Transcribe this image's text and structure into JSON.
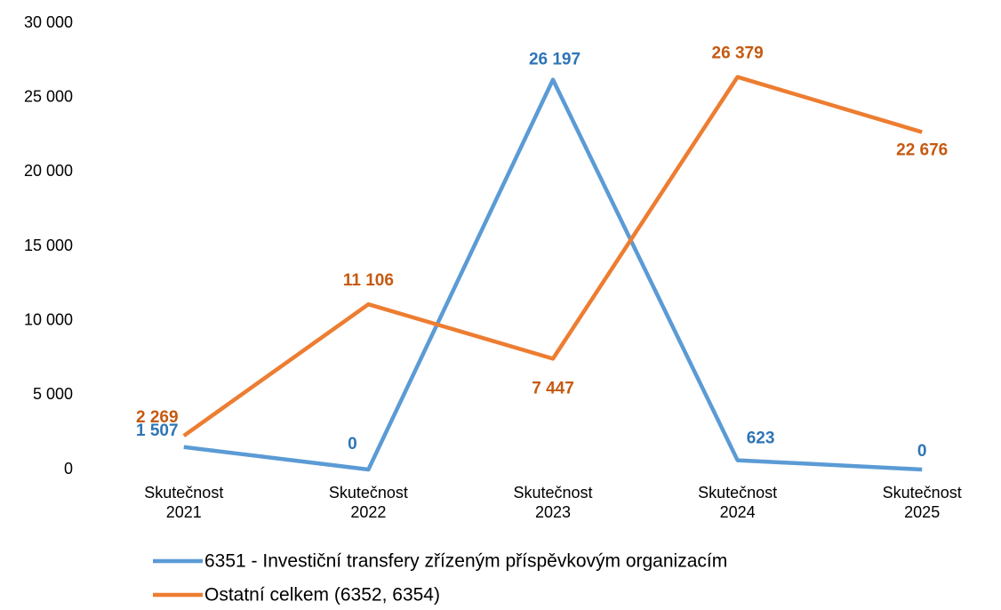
{
  "chart_data": {
    "type": "line",
    "categories": [
      "Skutečnost 2021",
      "Skutečnost 2022",
      "Skutečnost 2023",
      "Skutečnost 2024",
      "Skutečnost 2025"
    ],
    "series": [
      {
        "name": "6351 - Investiční transfery zřízeným příspěvkovým organizacím",
        "color": "#5b9bd5",
        "label_color": "#2e75b6",
        "values": [
          1507,
          0,
          26197,
          623,
          0
        ],
        "value_labels": [
          "1 507",
          "0",
          "26 197",
          "623",
          "0"
        ]
      },
      {
        "name": "Ostatní celkem (6352, 6354)",
        "color": "#ed7d31",
        "label_color": "#c55a11",
        "values": [
          2269,
          11106,
          7447,
          26379,
          22676
        ],
        "value_labels": [
          "2 269",
          "11 106",
          "7 447",
          "26 379",
          "22 676"
        ]
      }
    ],
    "ylim": [
      0,
      30000
    ],
    "yticks": [
      0,
      {
        "value": 5000,
        "label": "5 000"
      },
      {
        "value": 10000,
        "label": "10 000"
      },
      {
        "value": 15000,
        "label": "15 000"
      },
      {
        "value": 20000,
        "label": "20 000"
      },
      {
        "value": 25000,
        "label": "25 000"
      },
      {
        "value": 30000,
        "label": "30 000"
      }
    ],
    "grid": false,
    "legend": "bottom"
  }
}
